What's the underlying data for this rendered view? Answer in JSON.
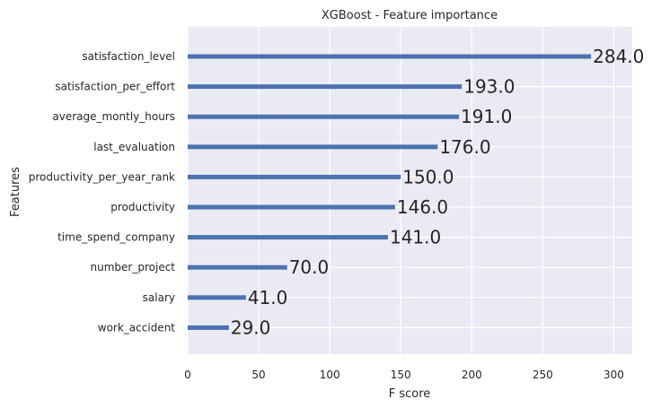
{
  "colors": {
    "panel_background": "#EAEAF2",
    "grid": "#FFFFFF",
    "bar": "#4C72B0",
    "text": "#262626"
  },
  "chart_data": {
    "type": "bar",
    "orientation": "horizontal",
    "title": "XGBoost - Feature importance",
    "xlabel": "F score",
    "ylabel": "Features",
    "xlim": [
      0,
      313
    ],
    "xticks": [
      0,
      50,
      100,
      150,
      200,
      250,
      300
    ],
    "grid": true,
    "categories": [
      "satisfaction_level",
      "satisfaction_per_effort",
      "average_montly_hours",
      "last_evaluation",
      "productivity_per_year_rank",
      "productivity",
      "time_spend_company",
      "number_project",
      "salary",
      "work_accident"
    ],
    "values": [
      284.0,
      193.0,
      191.0,
      176.0,
      150.0,
      146.0,
      141.0,
      70.0,
      41.0,
      29.0
    ],
    "value_labels": [
      "284.0",
      "193.0",
      "191.0",
      "176.0",
      "150.0",
      "146.0",
      "141.0",
      "70.0",
      "41.0",
      "29.0"
    ]
  }
}
